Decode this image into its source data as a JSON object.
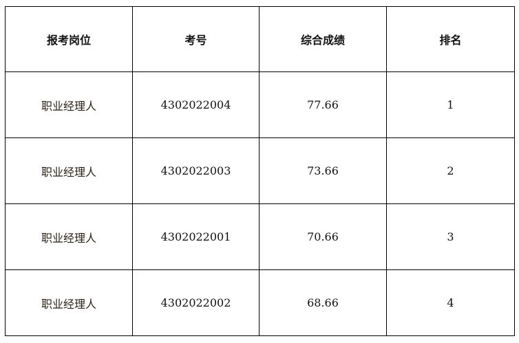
{
  "table": {
    "headers": [
      "报考岗位",
      "考号",
      "综合成绩",
      "排名"
    ],
    "rows": [
      [
        "职业经理人",
        "4302022004",
        "77.66",
        "1"
      ],
      [
        "职业经理人",
        "4302022003",
        "73.66",
        "2"
      ],
      [
        "职业经理人",
        "4302022001",
        "70.66",
        "3"
      ],
      [
        "职业经理人",
        "4302022002",
        "68.66",
        "4"
      ]
    ]
  }
}
